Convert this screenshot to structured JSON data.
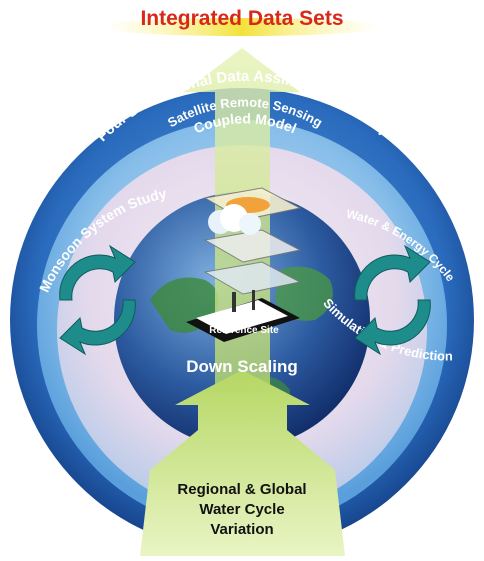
{
  "top_title": "Integrated Data Sets",
  "rings": {
    "outer": "Four Dimensional Data Assimilation (4DDA)",
    "middle": "Satellite Remote Sensing",
    "inner": "Coupled Model"
  },
  "side_labels": {
    "left": "Monsoon System Study",
    "right_top": "Water & Energy Cycle",
    "right_bottom": "Simulation & Prediction"
  },
  "center": {
    "reference_site": "Reference Site",
    "down_scaling": "Down Scaling"
  },
  "bottom": {
    "line1": "Regional & Global",
    "line2": "Water Cycle",
    "line3": "Variation"
  },
  "colors": {
    "title_red": "#d8281c",
    "title_yellow": "#f2e23a",
    "outer_ring": "#1f5fb0",
    "arrow_green": "#c9e27a",
    "cycle_teal": "#1f8c8c"
  },
  "icons": {
    "left_cycle": "circular-arrows-icon",
    "right_cycle": "circular-arrows-icon"
  }
}
